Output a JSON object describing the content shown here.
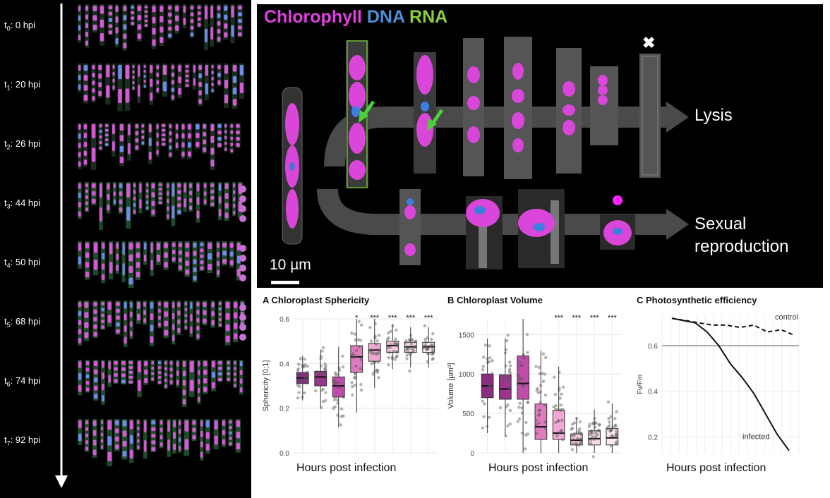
{
  "timeline": [
    {
      "sub": "0",
      "label": ": 0 hpi"
    },
    {
      "sub": "1",
      "label": ": 20 hpi"
    },
    {
      "sub": "2",
      "label": ": 26 hpi"
    },
    {
      "sub": "3",
      "label": ": 44 hpi"
    },
    {
      "sub": "4",
      "label": ": 50 hpi"
    },
    {
      "sub": "5",
      "label": ": 68 hpi"
    },
    {
      "sub": "6",
      "label": ": 74 hpi"
    },
    {
      "sub": "7",
      "label": ": 92 hpi"
    }
  ],
  "timeline_prefix": "t",
  "legend": {
    "chlorophyll": "Chlorophyll",
    "dna": "DNA",
    "rna": "RNA"
  },
  "legend_colors": {
    "chlorophyll": "#e040e0",
    "dna": "#4a90d9",
    "rna": "#8ccf3e"
  },
  "outcomes": {
    "lysis": "Lysis",
    "sexual_1": "Sexual",
    "sexual_2": "reproduction",
    "cross": "✖"
  },
  "scale_bar": "10 µm",
  "panels": {
    "A": {
      "letter": "A",
      "title": "Chloroplast Sphericity",
      "ylabel": "Sphericity [0;1]",
      "xlabel": "Hours post infection"
    },
    "B": {
      "letter": "B",
      "title": "Chloroplast Volume",
      "ylabel": "Volume [µm³]",
      "xlabel": "Hours post infection"
    },
    "C": {
      "letter": "C",
      "title": "Photosynthetic efficiency",
      "ylabel": "Fv/Fm",
      "xlabel": "Hours post infection"
    }
  },
  "chart_data": [
    {
      "type": "box",
      "title": "Chloroplast Sphericity",
      "ylabel": "Sphericity [0;1]",
      "xlabel": "Hours post infection",
      "ylim": [
        0,
        0.6
      ],
      "yticks": [
        "0.0",
        "0.2",
        "0.4",
        "0.6"
      ],
      "boxes": [
        {
          "q1": 0.31,
          "median": 0.335,
          "q3": 0.36,
          "color": "#8e2a84",
          "sig": ""
        },
        {
          "q1": 0.3,
          "median": 0.34,
          "q3": 0.365,
          "color": "#a0338f",
          "sig": ""
        },
        {
          "q1": 0.25,
          "median": 0.3,
          "q3": 0.34,
          "color": "#c04ca9",
          "sig": ""
        },
        {
          "q1": 0.36,
          "median": 0.43,
          "q3": 0.48,
          "color": "#e07bc0",
          "sig": "*"
        },
        {
          "q1": 0.41,
          "median": 0.46,
          "q3": 0.49,
          "color": "#f0a7d3",
          "sig": "***"
        },
        {
          "q1": 0.45,
          "median": 0.48,
          "q3": 0.5,
          "color": "#f5c7df",
          "sig": "***"
        },
        {
          "q1": 0.45,
          "median": 0.475,
          "q3": 0.495,
          "color": "#f8d8e6",
          "sig": "***"
        },
        {
          "q1": 0.45,
          "median": 0.475,
          "q3": 0.495,
          "color": "#fbe7ee",
          "sig": "***"
        }
      ]
    },
    {
      "type": "box",
      "title": "Chloroplast Volume",
      "ylabel": "Volume [µm³]",
      "xlabel": "Hours post infection",
      "ylim": [
        0,
        1700
      ],
      "yticks": [
        "0",
        "500",
        "1000",
        "1500"
      ],
      "boxes": [
        {
          "q1": 700,
          "median": 850,
          "q3": 1000,
          "color": "#8e2a84",
          "sig": ""
        },
        {
          "q1": 680,
          "median": 810,
          "q3": 990,
          "color": "#a0338f",
          "sig": ""
        },
        {
          "q1": 680,
          "median": 880,
          "q3": 1230,
          "color": "#c04ca9",
          "sig": ""
        },
        {
          "q1": 170,
          "median": 330,
          "q3": 620,
          "color": "#e07bc0",
          "sig": ""
        },
        {
          "q1": 170,
          "median": 250,
          "q3": 540,
          "color": "#f0a7d3",
          "sig": "***"
        },
        {
          "q1": 100,
          "median": 160,
          "q3": 240,
          "color": "#f5c7df",
          "sig": "***"
        },
        {
          "q1": 100,
          "median": 180,
          "q3": 280,
          "color": "#f8d8e6",
          "sig": "***"
        },
        {
          "q1": 100,
          "median": 190,
          "q3": 310,
          "color": "#fbe7ee",
          "sig": "***"
        }
      ]
    },
    {
      "type": "line",
      "title": "Photosynthetic efficiency",
      "ylabel": "Fv/Fm",
      "xlabel": "Hours post infection",
      "ylim": [
        0.13,
        0.73
      ],
      "yticks": [
        "0.2",
        "0.4",
        "0.6"
      ],
      "threshold": 0.6,
      "series": [
        {
          "name": "control",
          "style": "dashed",
          "values": [
            0.72,
            0.71,
            0.7,
            0.69,
            0.69,
            0.68,
            0.69,
            0.66,
            0.67,
            0.645
          ]
        },
        {
          "name": "infected",
          "style": "solid",
          "values": [
            0.72,
            0.71,
            0.7,
            0.66,
            0.6,
            0.52,
            0.46,
            0.39,
            0.3,
            0.21,
            0.14
          ]
        }
      ]
    }
  ]
}
